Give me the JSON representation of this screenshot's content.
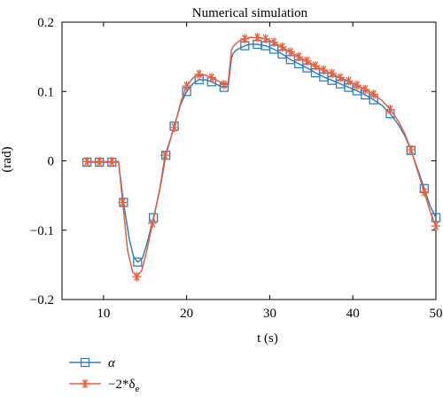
{
  "chart_data": {
    "type": "line",
    "title": "Numerical simulation",
    "xlabel": "t (s)",
    "ylabel": "(rad)",
    "xlim": [
      5,
      50
    ],
    "ylim": [
      -0.2,
      0.2
    ],
    "x_ticks": [
      10,
      20,
      30,
      40,
      50
    ],
    "x_tick_labels": [
      "10",
      "20",
      "30",
      "40",
      "50"
    ],
    "y_ticks": [
      -0.2,
      -0.1,
      0,
      0.1,
      0.2
    ],
    "y_tick_labels": [
      "−0.2",
      "−0.1",
      "0",
      "0.1",
      "0.2"
    ],
    "grid": false,
    "legend_position": "bottom-left",
    "series": [
      {
        "name": "α",
        "color": "#2f7fc1",
        "marker": "square",
        "x": [
          8,
          9.5,
          11,
          11.8,
          12.4,
          13.1,
          13.6,
          14.1,
          14.7,
          15.3,
          16.0,
          16.8,
          17.5,
          18.5,
          19.3,
          20.0,
          20.8,
          21.5,
          22.2,
          23.0,
          24.0,
          24.5,
          25.0,
          25.4,
          25.6,
          26.0,
          26.5,
          27.0,
          27.6,
          28.5,
          29.5,
          30.5,
          31.5,
          32.5,
          33.5,
          34.5,
          35.5,
          36.5,
          37.5,
          38.5,
          39.5,
          40.5,
          41.5,
          42.5,
          43.5,
          44.5,
          45.5,
          46.3,
          47.0,
          47.8,
          48.6,
          49.3,
          50.0
        ],
        "y": [
          -0.002,
          -0.002,
          -0.002,
          -0.002,
          -0.06,
          -0.113,
          -0.138,
          -0.146,
          -0.14,
          -0.116,
          -0.082,
          -0.04,
          0.008,
          0.05,
          0.082,
          0.1,
          0.112,
          0.117,
          0.117,
          0.114,
          0.108,
          0.106,
          0.108,
          0.148,
          0.155,
          0.16,
          0.163,
          0.166,
          0.168,
          0.168,
          0.166,
          0.161,
          0.154,
          0.146,
          0.14,
          0.134,
          0.127,
          0.121,
          0.116,
          0.111,
          0.106,
          0.101,
          0.095,
          0.088,
          0.08,
          0.068,
          0.052,
          0.035,
          0.015,
          -0.012,
          -0.04,
          -0.065,
          -0.082
        ],
        "marker_indices": [
          0,
          1,
          2,
          4,
          7,
          10,
          12,
          13,
          15,
          17,
          19,
          21,
          27,
          29,
          30,
          31,
          32,
          33,
          34,
          35,
          36,
          37,
          38,
          39,
          40,
          41,
          42,
          43,
          45,
          48,
          50,
          52
        ]
      },
      {
        "name": "−2*δ",
        "name_subscript": "e",
        "color": "#e8603c",
        "marker": "asterisk",
        "x": [
          8,
          9.5,
          11,
          11.8,
          12.3,
          12.9,
          13.5,
          14.0,
          14.6,
          15.2,
          15.9,
          16.7,
          17.4,
          18.5,
          19.3,
          20.0,
          20.8,
          21.5,
          22.2,
          23.0,
          24.0,
          24.5,
          25.0,
          25.4,
          25.6,
          26.0,
          26.5,
          27.0,
          27.6,
          28.5,
          29.5,
          30.5,
          31.5,
          32.5,
          33.5,
          34.5,
          35.5,
          36.5,
          37.5,
          38.5,
          39.5,
          40.5,
          41.5,
          42.5,
          43.5,
          44.5,
          45.5,
          46.3,
          47.0,
          47.8,
          48.6,
          49.3,
          50.0
        ],
        "y": [
          -0.001,
          -0.001,
          -0.001,
          -0.001,
          -0.06,
          -0.13,
          -0.16,
          -0.167,
          -0.158,
          -0.13,
          -0.09,
          -0.045,
          0.008,
          0.048,
          0.085,
          0.108,
          0.12,
          0.125,
          0.124,
          0.12,
          0.114,
          0.11,
          0.113,
          0.16,
          0.165,
          0.17,
          0.174,
          0.176,
          0.178,
          0.178,
          0.176,
          0.171,
          0.164,
          0.157,
          0.15,
          0.144,
          0.137,
          0.131,
          0.126,
          0.12,
          0.115,
          0.109,
          0.103,
          0.096,
          0.087,
          0.074,
          0.057,
          0.038,
          0.016,
          -0.015,
          -0.045,
          -0.073,
          -0.094
        ],
        "marker_indices": [
          0,
          1,
          2,
          4,
          7,
          10,
          12,
          13,
          15,
          17,
          19,
          21,
          27,
          29,
          30,
          31,
          32,
          33,
          34,
          35,
          36,
          37,
          38,
          39,
          40,
          41,
          42,
          43,
          45,
          48,
          50,
          52
        ]
      }
    ]
  }
}
